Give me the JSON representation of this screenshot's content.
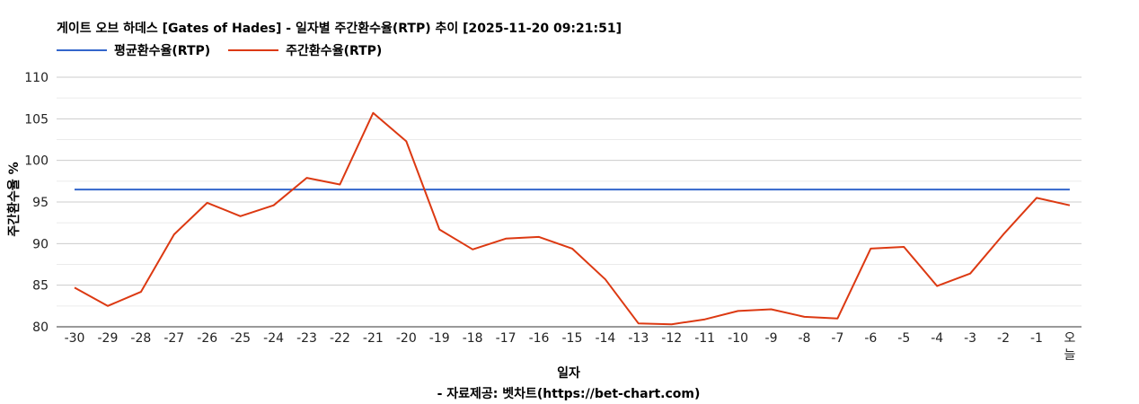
{
  "chart_data": {
    "type": "line",
    "title": "게이트 오브 하데스 [Gates of Hades] - 일자별 주간환수율(RTP) 추이 [2025-11-20 09:21:51]",
    "xlabel": "일자",
    "ylabel": "주간환수율 %",
    "source": "- 자료제공: 벳차트(https://bet-chart.com)",
    "categories": [
      "-30",
      "-29",
      "-28",
      "-27",
      "-26",
      "-25",
      "-24",
      "-23",
      "-22",
      "-21",
      "-20",
      "-19",
      "-18",
      "-17",
      "-16",
      "-15",
      "-14",
      "-13",
      "-12",
      "-11",
      "-10",
      "-9",
      "-8",
      "-7",
      "-6",
      "-5",
      "-4",
      "-3",
      "-2",
      "-1",
      "오늘"
    ],
    "series": [
      {
        "name": "평균환수율(RTP)",
        "color": "#3366cc",
        "values": [
          96.5,
          96.5,
          96.5,
          96.5,
          96.5,
          96.5,
          96.5,
          96.5,
          96.5,
          96.5,
          96.5,
          96.5,
          96.5,
          96.5,
          96.5,
          96.5,
          96.5,
          96.5,
          96.5,
          96.5,
          96.5,
          96.5,
          96.5,
          96.5,
          96.5,
          96.5,
          96.5,
          96.5,
          96.5,
          96.5,
          96.5
        ]
      },
      {
        "name": "주간환수율(RTP)",
        "color": "#dc3912",
        "values": [
          84.7,
          82.5,
          84.2,
          91.1,
          94.9,
          93.3,
          94.6,
          97.9,
          97.1,
          105.7,
          102.3,
          91.7,
          89.3,
          90.6,
          90.8,
          89.4,
          85.7,
          80.4,
          80.3,
          80.9,
          81.9,
          82.1,
          81.2,
          81.0,
          89.4,
          89.6,
          84.9,
          86.4,
          91.1,
          95.5,
          94.6
        ]
      }
    ],
    "yticks": [
      80,
      85,
      90,
      95,
      100,
      105,
      110
    ],
    "ylim": [
      80,
      110
    ],
    "grid": true,
    "legend_position": "top-left"
  }
}
